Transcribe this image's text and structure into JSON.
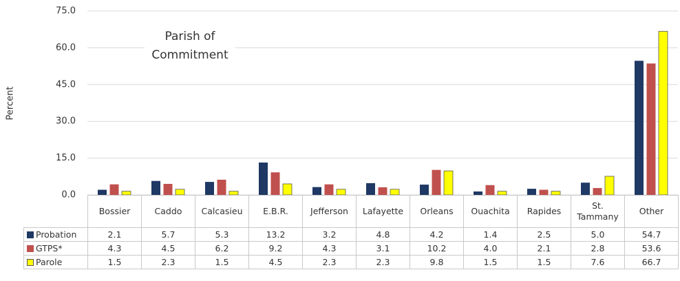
{
  "chart_data": {
    "type": "bar",
    "annotation": "Parish of Commitment",
    "y_label": "Percent",
    "categories": [
      "Bossier",
      "Caddo",
      "Calcasieu",
      "E.B.R.",
      "Jefferson",
      "Lafayette",
      "Orleans",
      "Ouachita",
      "Rapides",
      "St. Tammany",
      "Other"
    ],
    "series": [
      {
        "name": "Probation",
        "color": "#1f3864",
        "values": [
          2.1,
          5.7,
          5.3,
          13.2,
          3.2,
          4.8,
          4.2,
          1.4,
          2.5,
          5.0,
          54.7
        ],
        "value_labels": [
          "2.1",
          "5.7",
          "5.3",
          "13.2",
          "3.2",
          "4.8",
          "4.2",
          "1.4",
          "2.5",
          "5.0",
          "54.7"
        ]
      },
      {
        "name": "GTPS*",
        "color": "#c0504d",
        "values": [
          4.3,
          4.5,
          6.2,
          9.2,
          4.3,
          3.1,
          10.2,
          4.0,
          2.1,
          2.8,
          53.6
        ],
        "value_labels": [
          "4.3",
          "4.5",
          "6.2",
          "9.2",
          "4.3",
          "3.1",
          "10.2",
          "4.0",
          "2.1",
          "2.8",
          "53.6"
        ]
      },
      {
        "name": "Parole",
        "color": "#ffff00",
        "values": [
          1.5,
          2.3,
          1.5,
          4.5,
          2.3,
          2.3,
          9.8,
          1.5,
          1.5,
          7.6,
          66.7
        ],
        "value_labels": [
          "1.5",
          "2.3",
          "1.5",
          "4.5",
          "2.3",
          "2.3",
          "9.8",
          "1.5",
          "1.5",
          "7.6",
          "66.7"
        ]
      }
    ],
    "ylim": [
      0,
      75
    ],
    "yticks": [
      {
        "value": 0,
        "label": "0.0"
      },
      {
        "value": 15,
        "label": "15.0"
      },
      {
        "value": 30,
        "label": "30.0"
      },
      {
        "value": 45,
        "label": "45.0"
      },
      {
        "value": 60,
        "label": "60.0"
      },
      {
        "value": 75,
        "label": "75.0"
      }
    ],
    "grid": true
  }
}
